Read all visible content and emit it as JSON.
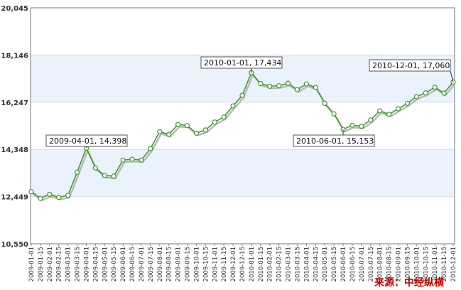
{
  "chart_data": {
    "type": "line",
    "title": "",
    "xlabel": "",
    "ylabel": "",
    "ylim": [
      10550,
      20045
    ],
    "y_ticks": [
      "20,045",
      "18,146",
      "16,247",
      "14,348",
      "12,449",
      "10,550"
    ],
    "y_tick_values": [
      20045,
      18146,
      16247,
      14348,
      12449,
      10550
    ],
    "x": [
      "2009-01-01",
      "2009-01-15",
      "2009-02-01",
      "2009-02-15",
      "2009-03-01",
      "2009-03-15",
      "2009-04-01",
      "2009-04-15",
      "2009-05-01",
      "2009-05-15",
      "2009-06-01",
      "2009-06-15",
      "2009-07-01",
      "2009-07-15",
      "2009-08-01",
      "2009-08-15",
      "2009-09-01",
      "2009-09-15",
      "2009-10-01",
      "2009-10-15",
      "2009-11-01",
      "2009-11-15",
      "2009-12-01",
      "2009-12-15",
      "2010-01-01",
      "2010-01-15",
      "2010-02-01",
      "2010-02-15",
      "2010-03-01",
      "2010-03-15",
      "2010-04-01",
      "2010-04-15",
      "2010-05-01",
      "2010-05-15",
      "2010-06-01",
      "2010-06-15",
      "2010-07-01",
      "2010-07-15",
      "2010-08-01",
      "2010-08-15",
      "2010-09-01",
      "2010-09-15",
      "2010-10-01",
      "2010-10-15",
      "2010-11-01",
      "2010-11-15",
      "2010-12-01"
    ],
    "series": [
      {
        "values": [
          12650,
          12380,
          12540,
          12420,
          12500,
          13430,
          14398,
          13600,
          13300,
          13270,
          13920,
          13950,
          13920,
          14380,
          15060,
          14950,
          15350,
          15310,
          15000,
          15130,
          15450,
          15650,
          16100,
          16520,
          17434,
          17000,
          16890,
          16910,
          17010,
          16750,
          16980,
          16840,
          16200,
          15780,
          15153,
          15320,
          15280,
          15530,
          15900,
          15760,
          15980,
          16200,
          16470,
          16620,
          16850,
          16610,
          17060
        ]
      }
    ],
    "annotations": [
      {
        "label": "2009-04-01, 14,398",
        "index": 6
      },
      {
        "label": "2010-01-01, 17,434",
        "index": 24
      },
      {
        "label": "2010-06-01, 15,153",
        "index": 34
      },
      {
        "label": "2010-12-01, 17,060",
        "index": 46
      }
    ],
    "grid": true,
    "legend": "none",
    "colors": {
      "line": "#3f9a2b",
      "shadow": "#b9b9b9",
      "marker_fill": "#ffffff",
      "band": "#eaf2fb",
      "axis": "#888888"
    }
  },
  "source_text": "来源：中经纵横"
}
